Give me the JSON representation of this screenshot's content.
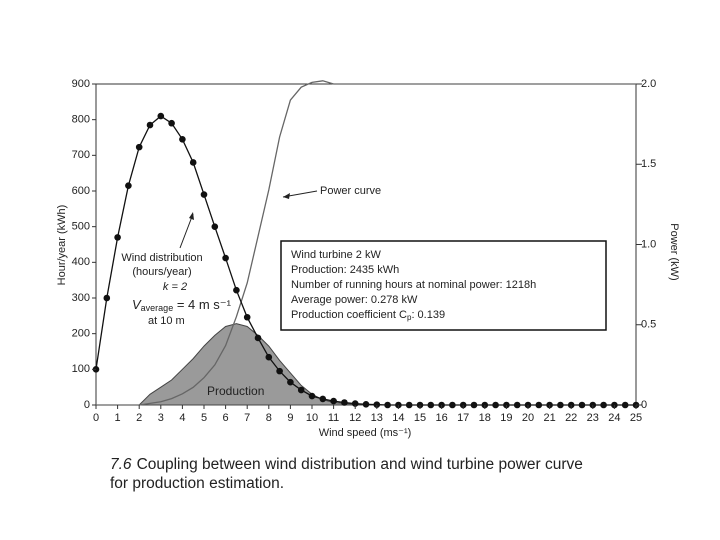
{
  "chart_data": {
    "type": "line",
    "xlabel": "Wind speed (ms⁻¹)",
    "ylabel": "Hour/year (kWh)",
    "y2label": "Power (kW)",
    "xlim": [
      0,
      25
    ],
    "xticks": [
      0,
      1,
      2,
      3,
      4,
      5,
      6,
      7,
      8,
      9,
      10,
      11,
      12,
      13,
      14,
      15,
      16,
      17,
      18,
      19,
      20,
      21,
      22,
      23,
      24,
      25
    ],
    "ylim": [
      0,
      900
    ],
    "yticks": [
      0,
      100,
      200,
      300,
      400,
      500,
      600,
      700,
      800,
      900
    ],
    "y2lim": [
      0,
      2.0
    ],
    "y2ticks": [
      0,
      0.5,
      {
        "value": 1.0,
        "label": "1.0"
      },
      1.5,
      {
        "value": 2.0,
        "label": "2.0"
      }
    ],
    "series": [
      {
        "type": "area",
        "color": "#9a9a9a",
        "axis": "y",
        "x": [
          2,
          2.5,
          3,
          3.5,
          4,
          4.5,
          5,
          5.5,
          6,
          6.5,
          7,
          7.5,
          8,
          8.5,
          9,
          9.5,
          10,
          10.5,
          11,
          12,
          13
        ],
        "values": [
          0,
          30,
          50,
          70,
          100,
          130,
          165,
          195,
          220,
          228,
          220,
          195,
          165,
          125,
          90,
          55,
          30,
          15,
          7,
          2,
          0
        ]
      },
      {
        "type": "line",
        "color": "#666666",
        "axis": "y2",
        "x": [
          0,
          1,
          2,
          2.5,
          3,
          3.5,
          4,
          4.5,
          5,
          5.5,
          6,
          6.5,
          7,
          7.5,
          8,
          8.5,
          9,
          9.5,
          10,
          10.5,
          11,
          12,
          13,
          14,
          15,
          16,
          17,
          18,
          19,
          20,
          21,
          22,
          23,
          24,
          25
        ],
        "values": [
          0,
          0,
          0,
          0.01,
          0.02,
          0.04,
          0.07,
          0.11,
          0.17,
          0.25,
          0.37,
          0.55,
          0.76,
          1.05,
          1.34,
          1.67,
          1.9,
          1.98,
          2.01,
          2.02,
          2.0,
          2.0,
          2.0,
          2.0,
          2.0,
          2.0,
          2.0,
          2.0,
          2.0,
          2.0,
          2.0,
          2.0,
          2.0,
          2.0,
          2.0
        ]
      },
      {
        "type": "line",
        "color": "#111111",
        "axis": "y",
        "markers": true,
        "x": [
          0,
          0.5,
          1,
          1.5,
          2,
          2.5,
          3,
          3.5,
          4,
          4.5,
          5,
          5.5,
          6,
          6.5,
          7,
          7.5,
          8,
          8.5,
          9,
          9.5,
          10,
          10.5,
          11,
          11.5,
          12,
          12.5,
          13,
          13.5,
          14,
          14.5,
          15,
          15.5,
          16,
          16.5,
          17,
          17.5,
          18,
          18.5,
          19,
          19.5,
          20,
          20.5,
          21,
          21.5,
          22,
          22.5,
          23,
          23.5,
          24,
          24.5,
          25
        ],
        "values": [
          100,
          300,
          470,
          615,
          723,
          785,
          810,
          790,
          745,
          680,
          590,
          500,
          412,
          322,
          246,
          188,
          134,
          95,
          64,
          42,
          25,
          17,
          11,
          7,
          4,
          2,
          1,
          0,
          0,
          0,
          0,
          0,
          0,
          0,
          0,
          0,
          0,
          0,
          0,
          0,
          0,
          0,
          0,
          0,
          0,
          0,
          0,
          0,
          0,
          0,
          0
        ]
      }
    ],
    "annotations": {
      "power_curve": "Power curve",
      "wind_distribution": [
        "Wind distribution",
        "(hours/year)",
        "k = 2"
      ],
      "v_average": {
        "symbol": "V",
        "subscript": "average",
        "text": " = 4 m s⁻¹"
      },
      "height": "at 10 m",
      "production": "Production",
      "box": [
        "Wind turbine 2 kW",
        "Production: 2435 kWh",
        "Number of running hours at nominal power: 1218h",
        "Average power: 0.278 kW"
      ],
      "coefficient": {
        "text": "Production coefficient  C",
        "subscript": "p",
        "value": ": 0.139"
      }
    }
  },
  "caption": {
    "number": "7.6",
    "lines": [
      "Coupling between wind distribution and wind turbine power curve",
      "for production estimation."
    ]
  }
}
